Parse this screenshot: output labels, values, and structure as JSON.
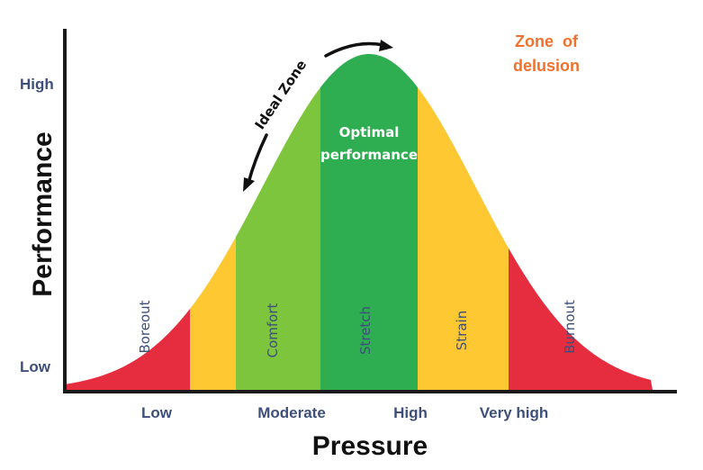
{
  "labels": {
    "y_high": "High",
    "y_low": "Low",
    "y_axis": "Performance",
    "x_axis": "Pressure",
    "x_low": "Low",
    "x_moderate": "Moderate",
    "x_high": "High",
    "x_very_high": "Very high",
    "ideal_zone": "Ideal Zone",
    "optimal_line1": "Optimal",
    "optimal_line2": "performance",
    "delusion_line1": "Zone  of",
    "delusion_line2": "delusion"
  },
  "zones": [
    {
      "label": "Boreout",
      "color": "#e52d3f"
    },
    {
      "label": "",
      "color": "#fdc832"
    },
    {
      "label": "Comfort",
      "color": "#7cc53d"
    },
    {
      "label": "Stretch",
      "color": "#2ead51"
    },
    {
      "label": "Strain",
      "color": "#fdc832"
    },
    {
      "label": "Burnout",
      "color": "#e52d3f"
    }
  ],
  "colors": {
    "axis": "#1a1a1a",
    "tick_label": "#3d4f7a",
    "zone_label": "#3d4f7a",
    "optimal_text": "#ffffff",
    "delusion_text": "#f0712c"
  }
}
